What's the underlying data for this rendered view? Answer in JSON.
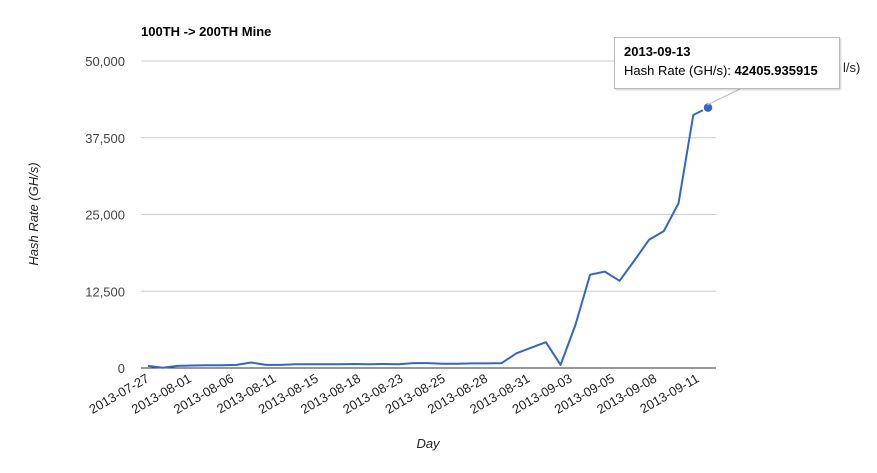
{
  "chart_data": {
    "type": "line",
    "title": "100TH -> 200TH Mine",
    "xlabel": "Day",
    "ylabel": "Hash Rate (GH/s)",
    "ylim": [
      0,
      50000
    ],
    "yticks": [
      "0",
      "12,500",
      "25,000",
      "37,500",
      "50,000"
    ],
    "ytick_values": [
      0,
      12500,
      25000,
      37500,
      50000
    ],
    "xticks": [
      "2013-07-27",
      "2013-08-01",
      "2013-08-06",
      "2013-08-11",
      "2013-08-15",
      "2013-08-18",
      "2013-08-23",
      "2013-08-25",
      "2013-08-28",
      "2013-08-31",
      "2013-09-03",
      "2013-09-05",
      "2013-09-08",
      "2013-09-11"
    ],
    "legend": {
      "visible_text": "l/s)"
    },
    "series": [
      {
        "name": "Hash Rate (GH/s)",
        "color": "#3366cc",
        "values": [
          350,
          50,
          350,
          400,
          450,
          450,
          500,
          900,
          500,
          500,
          600,
          600,
          600,
          600,
          650,
          600,
          650,
          600,
          800,
          800,
          700,
          700,
          750,
          750,
          800,
          2400,
          3300,
          4200,
          500,
          7000,
          15200,
          15700,
          14200,
          17500,
          20900,
          22300,
          26800,
          41200,
          42405.935915
        ]
      }
    ],
    "tooltip": {
      "date": "2013-09-13",
      "label": "Hash Rate (GH/s): ",
      "value": "42405.935915"
    },
    "grid": true
  }
}
